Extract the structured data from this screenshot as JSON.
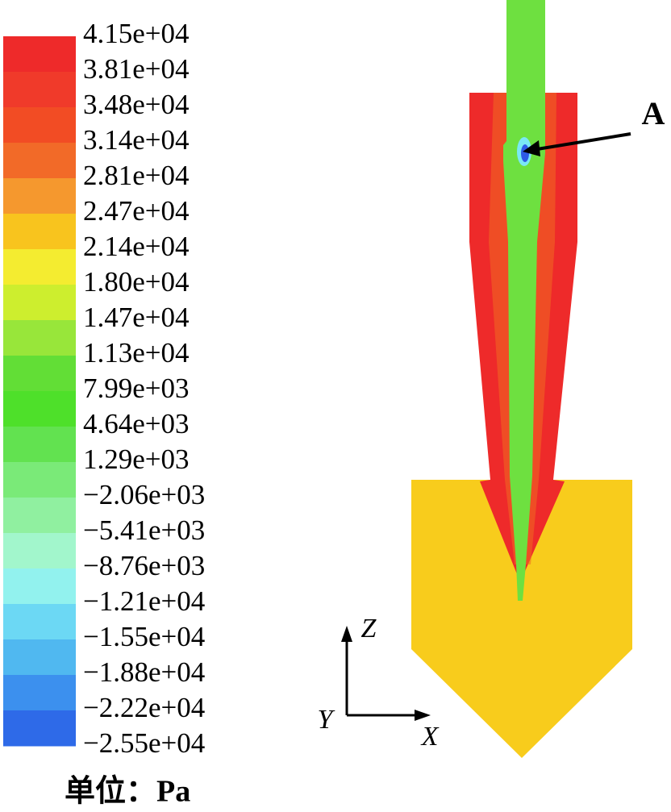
{
  "colorbar": {
    "labels": [
      "4.15e+04",
      "3.81e+04",
      "3.48e+04",
      "3.14e+04",
      "2.81e+04",
      "2.47e+04",
      "2.14e+04",
      "1.80e+04",
      "1.47e+04",
      "1.13e+04",
      "7.99e+03",
      "4.64e+03",
      "1.29e+03",
      "−2.06e+03",
      "−5.41e+03",
      "−8.76e+03",
      "−1.21e+04",
      "−1.55e+04",
      "−1.88e+04",
      "−2.22e+04",
      "−2.55e+04"
    ],
    "unit": "单位：Pa"
  },
  "annotation": "A",
  "axes": {
    "z": "Z",
    "y": "Y",
    "x": "X"
  }
}
